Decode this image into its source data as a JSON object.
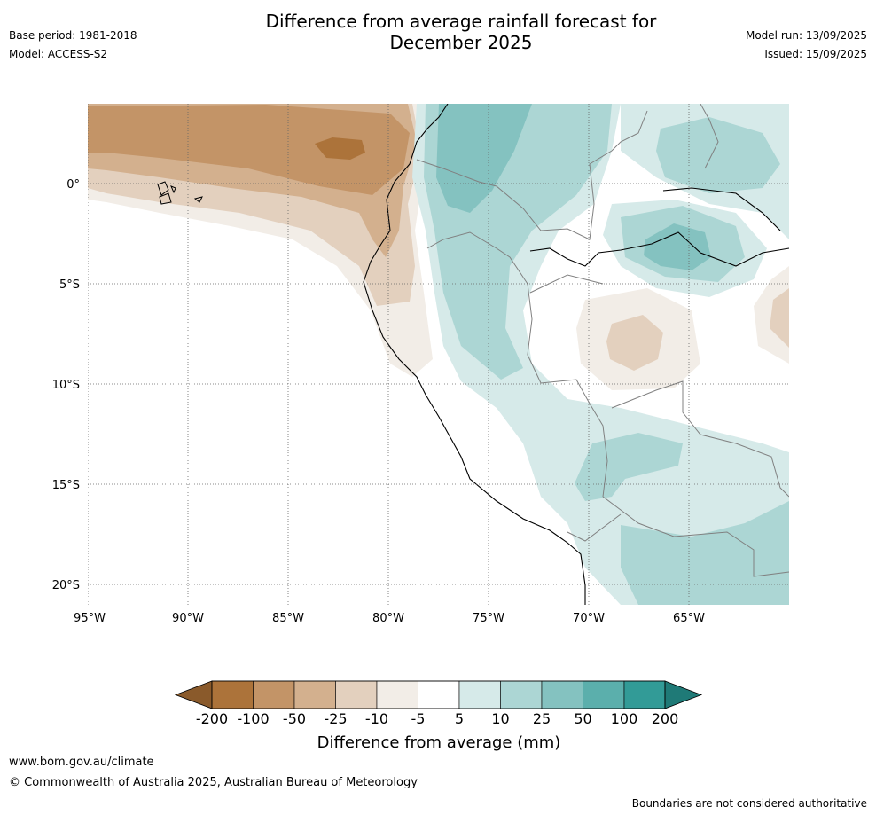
{
  "header": {
    "title_line1": "Difference from average rainfall forecast for",
    "title_line2": "December 2025",
    "base_period": "Base period: 1981-2018",
    "model": "Model: ACCESS-S2",
    "model_run": "Model run: 13/09/2025",
    "issued": "Issued: 15/09/2025"
  },
  "map": {
    "lon_ticks": [
      "95°W",
      "90°W",
      "85°W",
      "80°W",
      "75°W",
      "70°W",
      "65°W"
    ],
    "lat_ticks": [
      "0°",
      "5°S",
      "10°S",
      "15°S",
      "20°S"
    ],
    "gridlines": true
  },
  "colorbar": {
    "title": "Difference from average (mm)",
    "tick_labels": [
      "-200",
      "-100",
      "-50",
      "-25",
      "-10",
      "-5",
      "5",
      "10",
      "25",
      "50",
      "100",
      "200"
    ],
    "colors": [
      "#8a5a2b",
      "#ac733a",
      "#c39467",
      "#d3b08e",
      "#e3d0be",
      "#f2ede7",
      "#ffffff",
      "#d6eae9",
      "#acd6d4",
      "#84c2c0",
      "#5bafac",
      "#329b97",
      "#1f7a77"
    ]
  },
  "footer": {
    "url": "www.bom.gov.au/climate",
    "copyright": "© Commonwealth of Australia 2025, Australian Bureau of Meteorology",
    "disclaimer": "Boundaries are not considered authoritative"
  }
}
